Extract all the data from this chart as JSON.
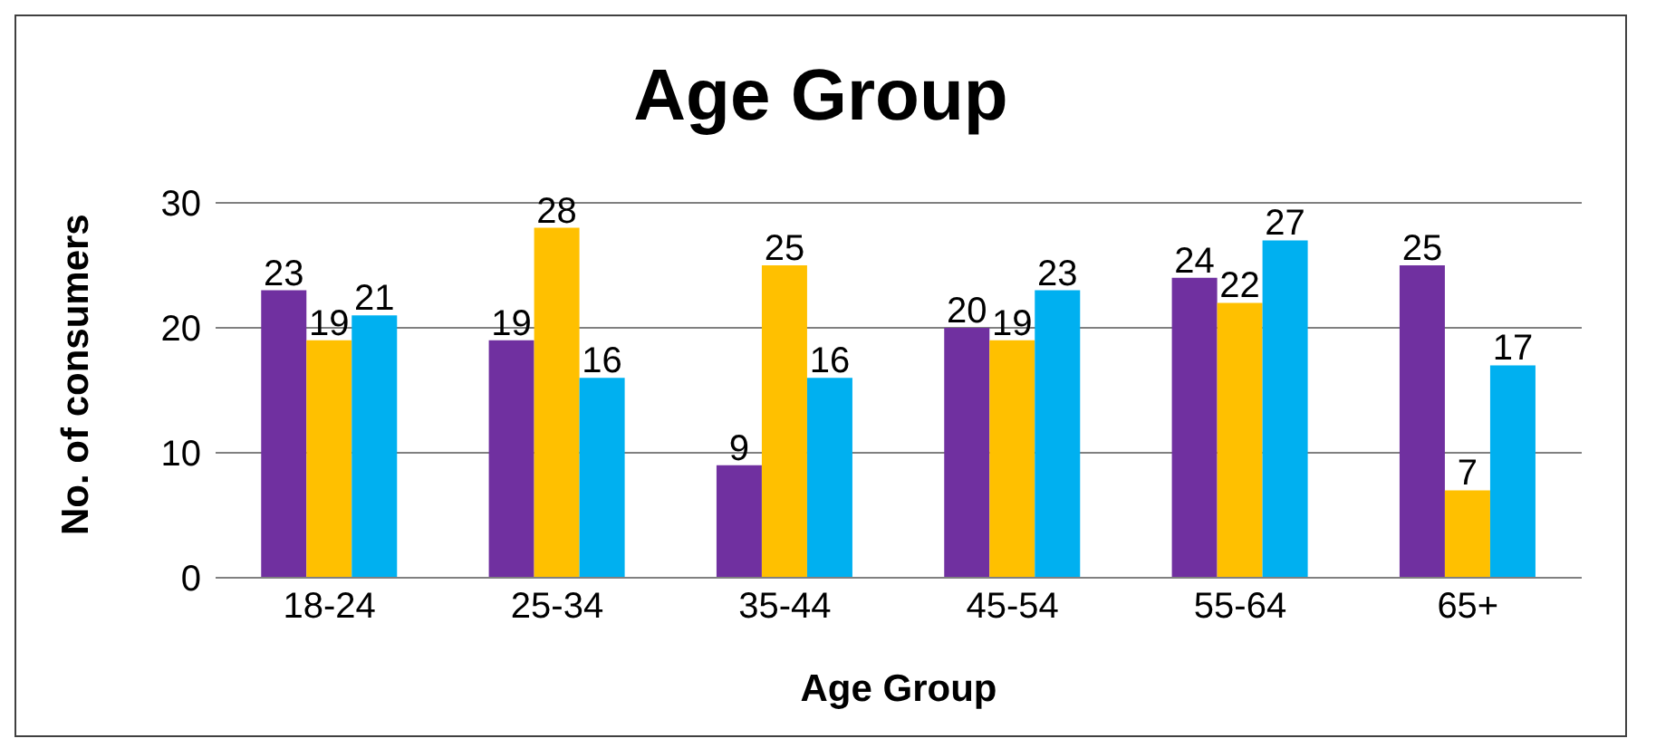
{
  "chart_data": {
    "type": "bar",
    "title": "Age Group",
    "xlabel": "Age Group",
    "ylabel": "No. of consumers",
    "categories": [
      "18-24",
      "25-34",
      "35-44",
      "45-54",
      "55-64",
      "65+"
    ],
    "series": [
      {
        "color": "#7030a0",
        "values": [
          23,
          19,
          9,
          20,
          24,
          25
        ]
      },
      {
        "color": "#ffc000",
        "values": [
          19,
          28,
          25,
          19,
          22,
          7
        ]
      },
      {
        "color": "#00b0f0",
        "values": [
          21,
          16,
          16,
          23,
          27,
          17
        ]
      }
    ],
    "ylim": [
      0,
      30
    ],
    "yticks": [
      0,
      10,
      20,
      30
    ],
    "grid": "y",
    "data_labels": true,
    "legend": false
  }
}
